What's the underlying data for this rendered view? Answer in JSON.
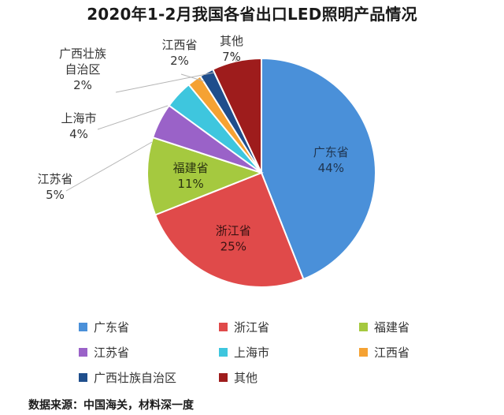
{
  "chart_data": {
    "type": "pie",
    "title": "2020年1-2月我国各省出口LED照明产品情况",
    "slices": [
      {
        "label": "广东省",
        "value": 44,
        "display_value": "44%",
        "color": "#4a90d9",
        "label_position": "inside",
        "label_color": "#1f3550"
      },
      {
        "label": "浙江省",
        "value": 25,
        "display_value": "25%",
        "color": "#e04a4a",
        "label_position": "inside",
        "label_color": "#3a1212"
      },
      {
        "label": "福建省",
        "value": 11,
        "display_value": "11%",
        "color": "#a5c93f",
        "label_position": "inside",
        "label_color": "#2a3310"
      },
      {
        "label": "江苏省",
        "value": 5,
        "display_value": "5%",
        "color": "#9a62c8",
        "label_position": "outside",
        "label_color": "#333333"
      },
      {
        "label": "上海市",
        "value": 4,
        "display_value": "4%",
        "color": "#3ec6de",
        "label_position": "outside",
        "label_color": "#333333"
      },
      {
        "label": "江西省",
        "value": 2,
        "display_value": "2%",
        "color": "#f5a233",
        "label_position": "outside",
        "label_color": "#333333"
      },
      {
        "label": "广西壮族自治区",
        "value": 2,
        "display_value": "2%",
        "color": "#1f4e8c",
        "label_position": "outside",
        "label_color": "#333333"
      },
      {
        "label": "其他",
        "value": 7,
        "display_value": "7%",
        "color": "#9e1c1c",
        "label_position": "outside",
        "label_color": "#333333"
      }
    ],
    "legend_position": "bottom"
  },
  "source": "数据来源：中国海关，材料深一度"
}
